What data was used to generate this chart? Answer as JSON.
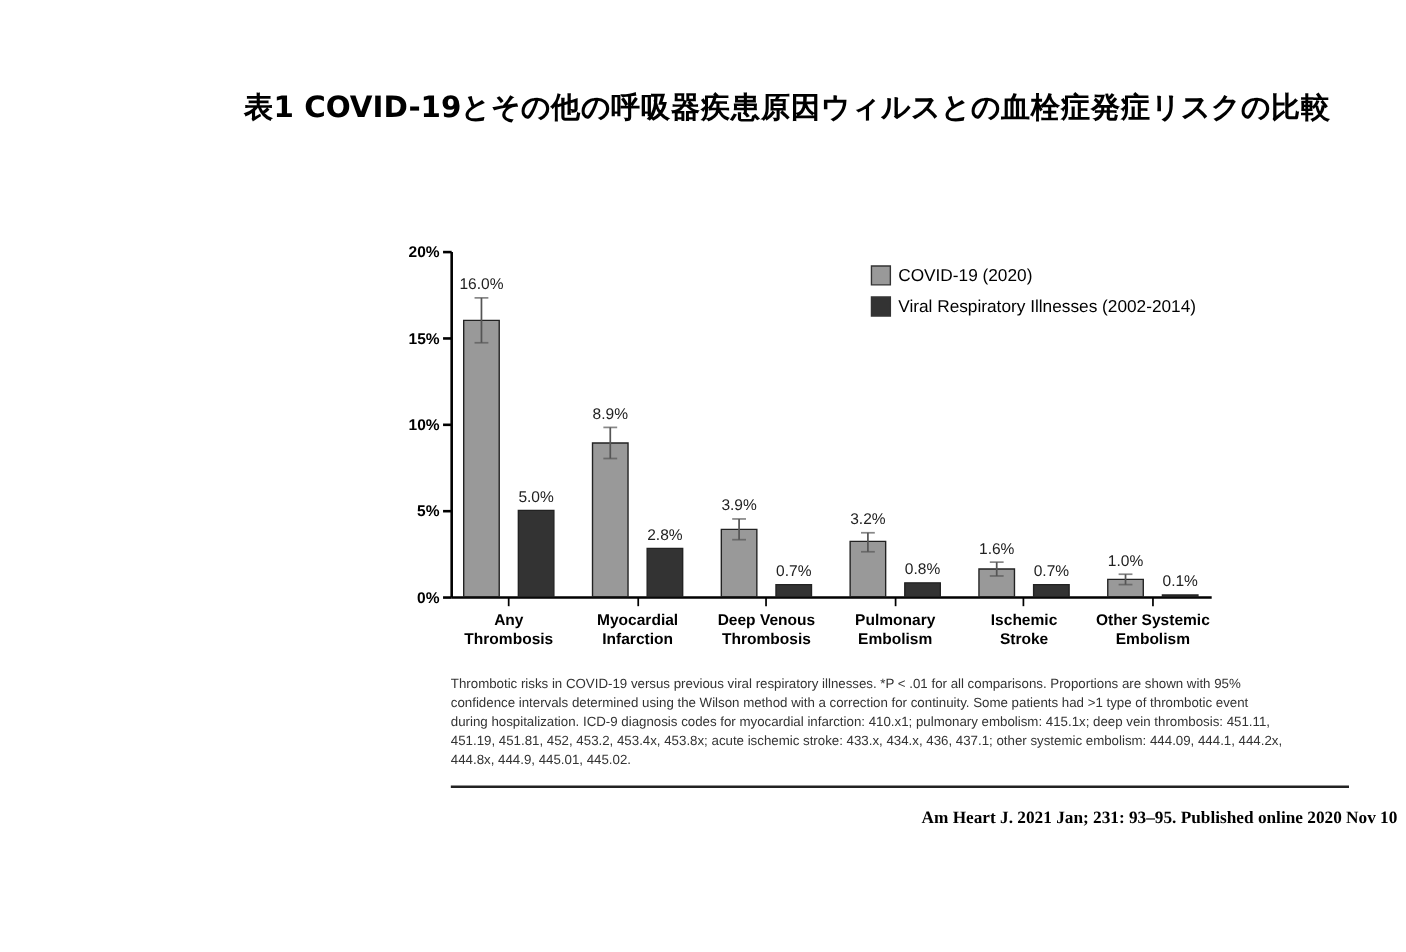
{
  "chart_data": {
    "type": "bar",
    "title": "表1 COVID-19とその他の呼吸器疾患原因ウィルスとの血栓症発症リスクの比較",
    "categories": [
      "Any\nThrombosis",
      "Myocardial\nInfarction",
      "Deep Venous\nThrombosis",
      "Pulmonary\nEmbolism",
      "Ischemic\nStroke",
      "Other Systemic\nEmbolism"
    ],
    "series": [
      {
        "name": "COVID-19 (2020)",
        "color": "#999999",
        "values": [
          16.0,
          8.9,
          3.9,
          3.2,
          1.6,
          1.0
        ],
        "errors": [
          [
            14.7,
            17.3
          ],
          [
            8.0,
            9.8
          ],
          [
            3.3,
            4.5
          ],
          [
            2.6,
            3.7
          ],
          [
            1.2,
            2.0
          ],
          [
            0.7,
            1.3
          ]
        ],
        "value_labels": [
          "16.0%",
          "8.9%",
          "3.9%",
          "3.2%",
          "1.6%",
          "1.0%"
        ]
      },
      {
        "name": "Viral Respiratory Illnesses (2002-2014)",
        "color": "#333333",
        "values": [
          5.0,
          2.8,
          0.7,
          0.8,
          0.7,
          0.1
        ],
        "value_labels": [
          "5.0%",
          "2.8%",
          "0.7%",
          "0.8%",
          "0.7%",
          "0.1%"
        ]
      }
    ],
    "ylim": [
      0,
      20
    ],
    "yticks": [
      {
        "value": 0,
        "label": "0%"
      },
      {
        "value": 5,
        "label": "5%"
      },
      {
        "value": 10,
        "label": "10%"
      },
      {
        "value": 15,
        "label": "15%"
      },
      {
        "value": 20,
        "label": "20%"
      }
    ],
    "legend": "top right",
    "annotations": [
      "Thrombotic risks in COVID-19 versus previous viral respiratory illnesses. *P < .01 for all comparisons. Proportions are shown with 95% confidence intervals determined using the Wilson method with a correction for continuity. Some patients had >1 type of thrombotic event during hospitalization. ICD-9 diagnosis codes for myocardial infarction: 410.x1; pulmonary embolism: 415.1x; deep vein thrombosis: 451.11, 451.19, 451.81, 452, 453.2, 453.4x, 453.8x; acute ischemic stroke: 433.x, 434.x, 436, 437.1; other systemic embolism: 444.09, 444.1, 444.2x, 444.8x, 444.9, 445.01, 445.02.",
      "Am Heart J. 2021 Jan; 231: 93–95. Published online 2020 Nov 10"
    ]
  }
}
